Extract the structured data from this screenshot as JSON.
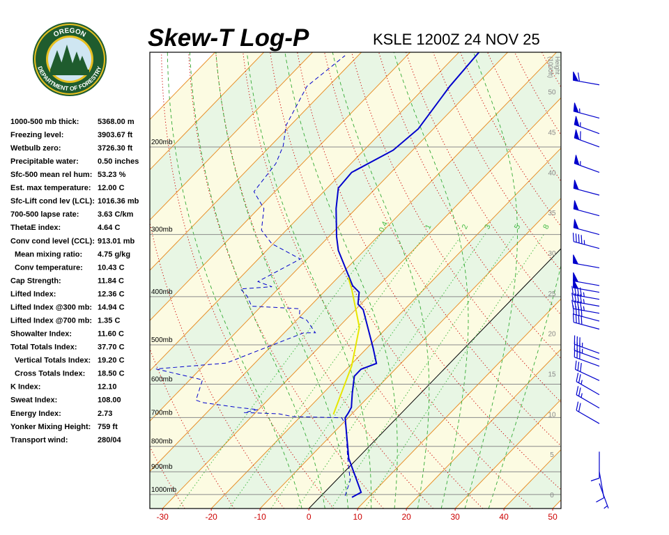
{
  "logo": {
    "top": "OREGON",
    "bottom": "DEPARTMENT OF FORESTRY"
  },
  "indices": [
    {
      "label": "1000-500 mb thick:",
      "value": "5368.00 m"
    },
    {
      "label": "Freezing level:",
      "value": "3903.67 ft"
    },
    {
      "label": "Wetbulb zero:",
      "value": "3726.30 ft"
    },
    {
      "label": "Precipitable water:",
      "value": "0.50 inches"
    },
    {
      "label": "Sfc-500 mean rel hum:",
      "value": "53.23 %"
    },
    {
      "label": "Est. max temperature:",
      "value": "12.00 C"
    },
    {
      "label": "Sfc-Lift cond lev (LCL):",
      "value": "1016.36 mb"
    },
    {
      "label": "700-500 lapse rate:",
      "value": "3.63 C/km"
    },
    {
      "label": "ThetaE index:",
      "value": "4.64 C"
    },
    {
      "label": "Conv cond level (CCL):",
      "value": "913.01 mb"
    },
    {
      "label": "Mean mixing ratio:",
      "value": "4.75 g/kg"
    },
    {
      "label": "Conv temperature:",
      "value": "10.43 C"
    },
    {
      "label": "Cap Strength:",
      "value": "11.84 C"
    },
    {
      "label": "Lifted Index:",
      "value": "12.36 C"
    },
    {
      "label": "Lifted Index @300 mb:",
      "value": "14.94 C"
    },
    {
      "label": "Lifted Index @700 mb:",
      "value": "1.35 C"
    },
    {
      "label": "Showalter Index:",
      "value": "11.60 C"
    },
    {
      "label": "Total Totals Index:",
      "value": "37.70 C"
    },
    {
      "label": "Vertical Totals Index:",
      "value": "19.20 C"
    },
    {
      "label": "Cross Totals Index:",
      "value": "18.50 C"
    },
    {
      "label": "K Index:",
      "value": "12.10"
    },
    {
      "label": "Sweat Index:",
      "value": "108.00"
    },
    {
      "label": "Energy Index:",
      "value": "2.73"
    },
    {
      "label": "Yonker Mixing Height:",
      "value": "759 ft"
    },
    {
      "label": "Transport wind:",
      "value": "280/04"
    }
  ],
  "chart_data": {
    "type": "skewt",
    "title": "Skew-T Log-P",
    "subtitle": "KSLE 1200Z 24 NOV 25",
    "xlim": [
      -32.6,
      51.7
    ],
    "xticks": [
      -30,
      -20,
      -10,
      0,
      10,
      20,
      30,
      40,
      50
    ],
    "ylim": [
      1067,
      129
    ],
    "log_y": true,
    "yticks": [
      {
        "value": 1000,
        "label": "1000mb"
      },
      {
        "value": 900,
        "label": "900mb"
      },
      {
        "value": 800,
        "label": "800mb"
      },
      {
        "value": 700,
        "label": "700mb"
      },
      {
        "value": 600,
        "label": "600mb"
      },
      {
        "value": 500,
        "label": "500mb"
      },
      {
        "value": 400,
        "label": "400mb"
      },
      {
        "value": 300,
        "label": "300mb"
      },
      {
        "value": 200,
        "label": "200mb"
      }
    ],
    "y2label": [
      "Height",
      "(1000ft)"
    ],
    "y2lim": [
      -1.73,
      54.9
    ],
    "y2ticks": [
      0,
      5,
      10,
      15,
      20,
      25,
      30,
      35,
      40,
      45,
      50
    ],
    "isotherms": [
      -110,
      -100,
      -90,
      -80,
      -70,
      -60,
      -50,
      -40,
      -30,
      -20,
      -10,
      0,
      10,
      20,
      30,
      40,
      50
    ],
    "isotherm_color": "#e8902a",
    "highlight_isotherm": 0,
    "highlight_color": "#000000",
    "band_colors": [
      "#fcfbe2",
      "#e8f6e4"
    ],
    "dry_adiabats": [
      -40,
      -30,
      -20,
      -10,
      0,
      10,
      20,
      30,
      40,
      50,
      60,
      70,
      80,
      90,
      100,
      110,
      120,
      130,
      140,
      150,
      160,
      170,
      180
    ],
    "dry_color": "#cc0000",
    "moist_adiabats": [
      -5,
      0,
      5,
      10,
      15,
      20,
      25,
      30,
      35
    ],
    "moist_color": "#33aa33",
    "mixing_ratios": [
      0.4,
      1,
      2,
      3,
      5,
      8
    ],
    "mixing_color": "#44bb44",
    "series": [
      {
        "color": "#0000cc",
        "dashed": false,
        "pressure": [
          1013,
          990,
          908,
          846,
          701,
          686,
          668,
          626,
          578,
          560,
          545,
          508,
          425,
          414,
          392,
          380,
          323,
          303,
          266,
          242,
          225,
          203,
          184,
          151,
          129
        ],
        "values": [
          6.6,
          7.5,
          2.4,
          -1.8,
          -10.6,
          -10.9,
          -11.4,
          -14.0,
          -17.0,
          -17.0,
          -15.0,
          -18.7,
          -28.4,
          -30.6,
          -32.7,
          -35.4,
          -45.3,
          -48.4,
          -54.1,
          -57.7,
          -58.1,
          -54.0,
          -53.1,
          -55.1,
          -55.9
        ]
      },
      {
        "color": "#0000cc",
        "dashed": true,
        "pressure": [
          1006,
          937,
          837,
          724,
          701,
          697,
          688,
          684,
          675,
          668,
          653,
          646,
          588,
          559,
          544,
          473,
          473,
          446,
          439,
          423,
          418,
          399,
          386,
          382,
          373,
          336,
          313,
          294,
          266,
          246,
          216,
          199,
          181,
          151,
          131
        ],
        "values": [
          4.9,
          2.9,
          -2.5,
          -9.1,
          -11.3,
          -21.6,
          -25.0,
          -32.4,
          -30.1,
          -34.8,
          -42.9,
          -44.7,
          -47.4,
          -59.1,
          -45.9,
          -36.0,
          -33.6,
          -37.9,
          -40.1,
          -41.6,
          -52.0,
          -54.9,
          -57.7,
          -51.7,
          -55.6,
          -51.4,
          -60.3,
          -65.1,
          -68.9,
          -74.3,
          -75.4,
          -77.4,
          -80.9,
          -84.4,
          -82.7
        ]
      },
      {
        "color": "#e6e600",
        "dashed": false,
        "pressure": [
          690,
          551,
          461,
          386,
          366
        ],
        "values": [
          -13.7,
          -19.6,
          -25.7,
          -34.9,
          -37.9
        ]
      }
    ],
    "wind_color": "#0000cc",
    "winds": [
      {
        "pressure": 150,
        "direction": 280,
        "speed": 60
      },
      {
        "pressure": 175,
        "direction": 285,
        "speed": 55
      },
      {
        "pressure": 188,
        "direction": 290,
        "speed": 55
      },
      {
        "pressure": 200,
        "direction": 290,
        "speed": 60
      },
      {
        "pressure": 225,
        "direction": 290,
        "speed": 55
      },
      {
        "pressure": 250,
        "direction": 285,
        "speed": 50
      },
      {
        "pressure": 275,
        "direction": 285,
        "speed": 50
      },
      {
        "pressure": 300,
        "direction": 285,
        "speed": 50
      },
      {
        "pressure": 320,
        "direction": 285,
        "speed": 45
      },
      {
        "pressure": 350,
        "direction": 280,
        "speed": 50
      },
      {
        "pressure": 380,
        "direction": 280,
        "speed": 50
      },
      {
        "pressure": 392,
        "direction": 280,
        "speed": 50
      },
      {
        "pressure": 405,
        "direction": 280,
        "speed": 45
      },
      {
        "pressure": 418,
        "direction": 280,
        "speed": 45
      },
      {
        "pressure": 432,
        "direction": 280,
        "speed": 45
      },
      {
        "pressure": 448,
        "direction": 285,
        "speed": 40
      },
      {
        "pressure": 465,
        "direction": 285,
        "speed": 40
      },
      {
        "pressure": 520,
        "direction": 290,
        "speed": 35
      },
      {
        "pressure": 535,
        "direction": 290,
        "speed": 35
      },
      {
        "pressure": 552,
        "direction": 290,
        "speed": 30
      },
      {
        "pressure": 590,
        "direction": 295,
        "speed": 30
      },
      {
        "pressure": 630,
        "direction": 300,
        "speed": 25
      },
      {
        "pressure": 670,
        "direction": 300,
        "speed": 25
      },
      {
        "pressure": 720,
        "direction": 300,
        "speed": 20
      },
      {
        "pressure": 820,
        "direction": 180,
        "speed": 10
      },
      {
        "pressure": 900,
        "direction": 170,
        "speed": 10
      },
      {
        "pressure": 950,
        "direction": 160,
        "speed": 5
      }
    ]
  }
}
